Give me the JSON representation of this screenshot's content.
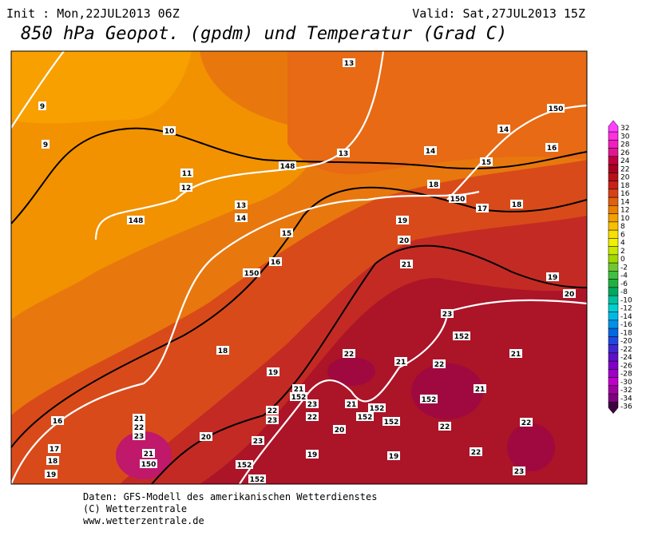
{
  "header": {
    "init": "Init : Mon,22JUL2013 06Z",
    "valid": "Valid: Sat,27JUL2013 15Z",
    "title": "850 hPa Geopot. (gpdm) und Temperatur (Grad C)"
  },
  "legend": {
    "labels": [
      32,
      30,
      28,
      26,
      24,
      22,
      20,
      18,
      16,
      14,
      12,
      10,
      8,
      6,
      4,
      2,
      0,
      -2,
      -4,
      -6,
      -8,
      -10,
      -12,
      -14,
      -16,
      -18,
      -20,
      -22,
      -24,
      -26,
      -28,
      -30,
      -32,
      -34,
      -36
    ],
    "colors": [
      "#ff40ff",
      "#ff30e0",
      "#f020c0",
      "#e01890",
      "#c00040",
      "#a80020",
      "#b81018",
      "#c82018",
      "#d84018",
      "#e06010",
      "#ec8000",
      "#f4a000",
      "#f8c000",
      "#f8e000",
      "#f0f000",
      "#c8e800",
      "#a0d800",
      "#70c830",
      "#40c040",
      "#20b040",
      "#00a860",
      "#00c0a0",
      "#00d0d0",
      "#00b8e8",
      "#0090e8",
      "#0068e0",
      "#2048e0",
      "#4028d0",
      "#6010c8",
      "#8000c8",
      "#a000c8",
      "#c000c8",
      "#a000a0",
      "#800080",
      "#400040"
    ]
  },
  "map": {
    "contour_labels": [
      13,
      9,
      10,
      9,
      11,
      12,
      148,
      13,
      14,
      15,
      16,
      14,
      150,
      148,
      13,
      14,
      15,
      16,
      150,
      18,
      150,
      17,
      18,
      19,
      20,
      21,
      19,
      20,
      23,
      152,
      18,
      22,
      21,
      22,
      21,
      19,
      21,
      152,
      21,
      152,
      23,
      21,
      152,
      22,
      23,
      22,
      152,
      152,
      16,
      21,
      22,
      23,
      20,
      20,
      22,
      22,
      23,
      17,
      21,
      150,
      18,
      22,
      19,
      19,
      152,
      19,
      152,
      23
    ]
  },
  "footer": {
    "line1": "Daten: GFS-Modell des amerikanischen Wetterdienstes",
    "line2": "(C) Wetterzentrale",
    "line3": "www.wetterzentrale.de"
  }
}
